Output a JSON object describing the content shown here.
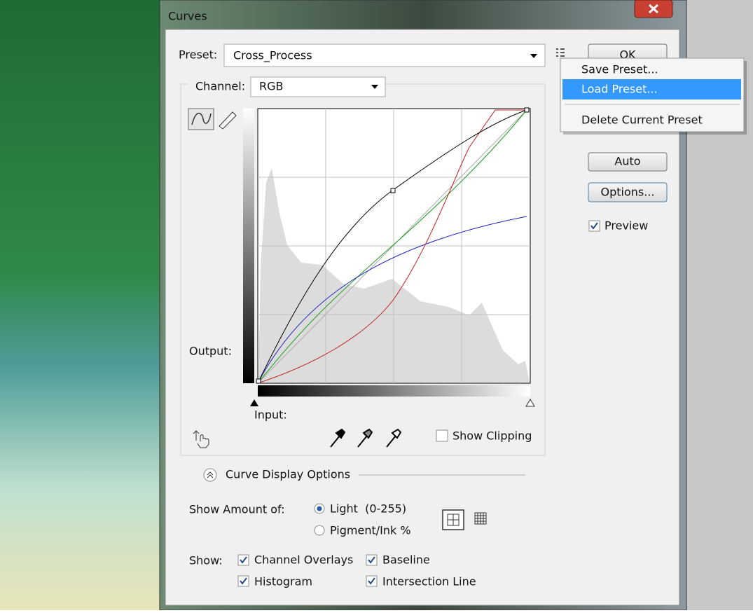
{
  "window": {
    "title": "Curves"
  },
  "preset": {
    "label": "Preset:",
    "value": "Cross_Process"
  },
  "buttons": {
    "ok": "OK",
    "auto": "Auto",
    "options": "Options..."
  },
  "preview": "Preview",
  "menu": {
    "items": [
      "Save Preset...",
      "Load Preset...",
      "Delete Current Preset"
    ]
  },
  "channel": {
    "label": "Channel:",
    "value": "RGB"
  },
  "graph": {
    "output_label": "Output:",
    "input_label": "Input:"
  },
  "show_clipping": "Show Clipping",
  "curve_display_options": {
    "title": "Curve Display Options",
    "show_amount_label": "Show Amount of:",
    "light": "Light  (0-255)",
    "pigment": "Pigment/Ink %",
    "show_label": "Show:",
    "channel_overlays": "Channel Overlays",
    "baseline": "Baseline",
    "histogram": "Histogram",
    "intersection_line": "Intersection Line"
  }
}
